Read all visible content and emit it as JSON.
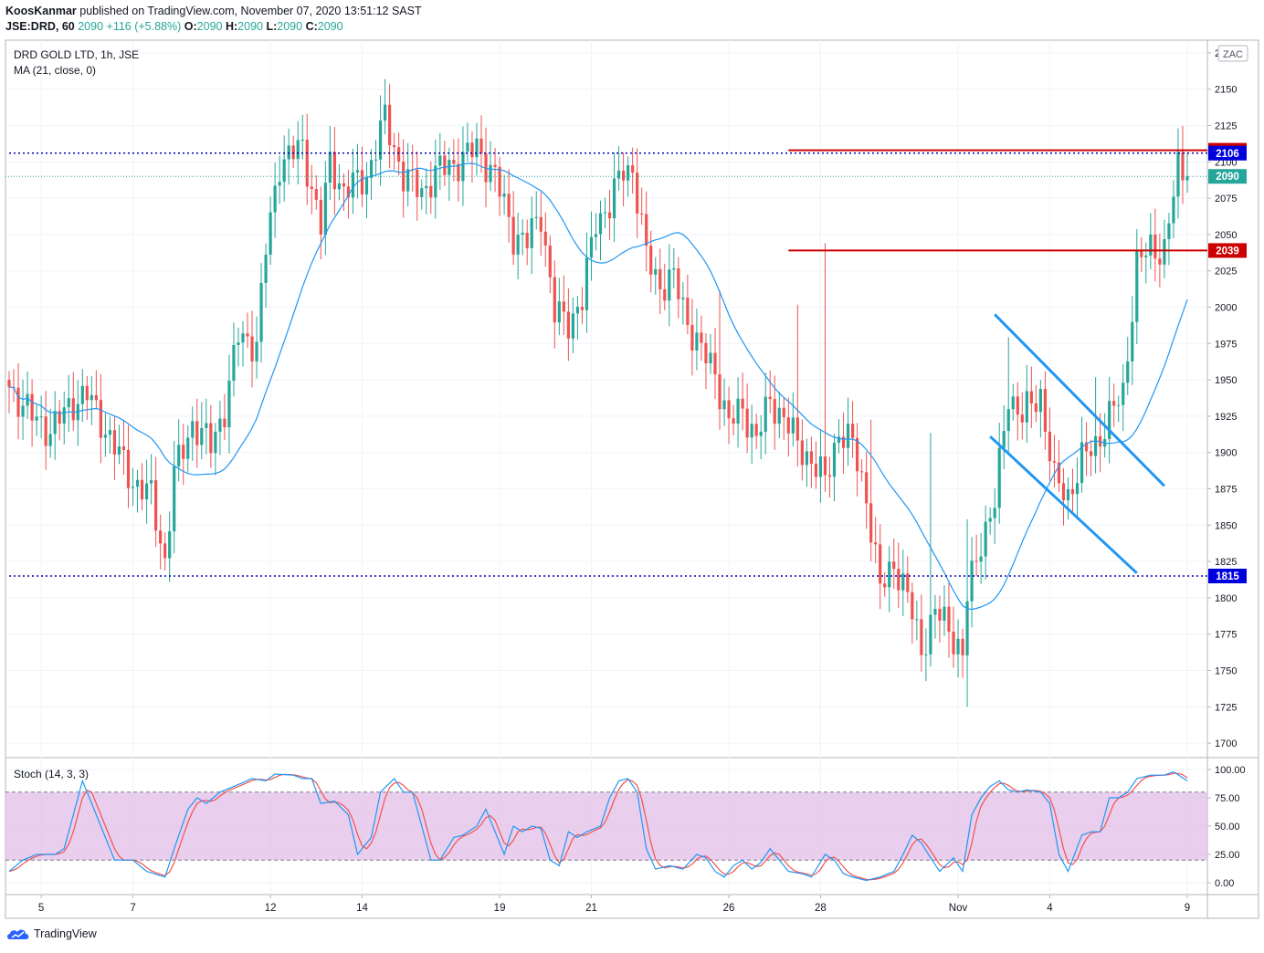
{
  "header": {
    "author": "KoosKanmar",
    "published_text": "published on TradingView.com, November 07, 2020 13:51:12 SAST",
    "symbol": "JSE:DRD, 60",
    "last": "2090",
    "change": "+116 (+5.88%)",
    "o_label": "O:",
    "o_val": "2090",
    "h_label": "H:",
    "h_val": "2090",
    "l_label": "L:",
    "l_val": "2090",
    "c_label": "C:",
    "c_val": "2090"
  },
  "legend": {
    "title": "DRD GOLD LTD, 1h, JSE",
    "ma": "MA (21, close, 0)",
    "stoch": "Stoch (14, 3, 3)"
  },
  "currency_badge": "ZAC",
  "footer": {
    "brand": "TradingView"
  },
  "colors": {
    "up": "#26a69a",
    "down": "#ef5350",
    "ma": "#2196f3",
    "support": "#0000bb",
    "resistance": "#cc0000",
    "k_line": "#2196f3",
    "d_line": "#ef5350",
    "band_fill": "#e1bee7",
    "channel": "#2196f3"
  },
  "chart_data": {
    "type": "candlestick",
    "y_axis": {
      "min": 1690,
      "max": 2185,
      "ticks": [
        1700,
        1725,
        1750,
        1775,
        1800,
        1825,
        1850,
        1875,
        1900,
        1925,
        1950,
        1975,
        2000,
        2025,
        2050,
        2075,
        2100,
        2125,
        2150,
        2175
      ]
    },
    "x_axis": {
      "tick_labels": [
        "5",
        "7",
        "12",
        "14",
        "19",
        "21",
        "26",
        "28",
        "Nov",
        "4",
        "9"
      ],
      "tick_index": [
        7,
        27,
        57,
        77,
        107,
        127,
        157,
        177,
        207,
        227,
        257
      ]
    },
    "price_labels": [
      {
        "text": "2108",
        "price": 2108,
        "color": "#cc0000"
      },
      {
        "text": "2106",
        "price": 2106,
        "color": "#0000dd"
      },
      {
        "text": "2090",
        "price": 2090,
        "color": "#26a69a"
      },
      {
        "text": "2039",
        "price": 2039,
        "color": "#cc0000"
      },
      {
        "text": "1815",
        "price": 1815,
        "color": "#0000dd"
      }
    ],
    "horizontal_lines": [
      {
        "price": 2106,
        "style": "dotted",
        "color": "#0000bb",
        "from_index": 0
      },
      {
        "price": 1815,
        "style": "dotted",
        "color": "#0000bb",
        "from_index": 0
      },
      {
        "price": 2108,
        "style": "solid",
        "color": "#cc0000",
        "from_index": 170
      },
      {
        "price": 2039,
        "style": "solid",
        "color": "#cc0000",
        "from_index": 170
      }
    ],
    "channel_lines": [
      {
        "x1": 215,
        "y1": 1995,
        "x2": 252,
        "y2": 1877
      },
      {
        "x1": 214,
        "y1": 1911,
        "x2": 246,
        "y2": 1817
      }
    ],
    "close_anchors": [
      [
        0,
        1945
      ],
      [
        5,
        1925
      ],
      [
        9,
        1915
      ],
      [
        14,
        1935
      ],
      [
        17,
        1940
      ],
      [
        22,
        1910
      ],
      [
        27,
        1880
      ],
      [
        31,
        1870
      ],
      [
        34,
        1825
      ],
      [
        36,
        1885
      ],
      [
        40,
        1920
      ],
      [
        44,
        1905
      ],
      [
        47,
        1930
      ],
      [
        50,
        1980
      ],
      [
        54,
        1975
      ],
      [
        56,
        2040
      ],
      [
        59,
        2100
      ],
      [
        64,
        2110
      ],
      [
        68,
        2055
      ],
      [
        70,
        2100
      ],
      [
        73,
        2080
      ],
      [
        78,
        2090
      ],
      [
        82,
        2130
      ],
      [
        86,
        2090
      ],
      [
        90,
        2080
      ],
      [
        94,
        2095
      ],
      [
        98,
        2100
      ],
      [
        102,
        2110
      ],
      [
        106,
        2090
      ],
      [
        110,
        2050
      ],
      [
        113,
        2045
      ],
      [
        116,
        2065
      ],
      [
        119,
        1995
      ],
      [
        122,
        1990
      ],
      [
        125,
        2005
      ],
      [
        128,
        2060
      ],
      [
        131,
        2070
      ],
      [
        134,
        2095
      ],
      [
        136,
        2095
      ],
      [
        139,
        2035
      ],
      [
        142,
        2015
      ],
      [
        145,
        2020
      ],
      [
        148,
        1990
      ],
      [
        151,
        1970
      ],
      [
        154,
        1955
      ],
      [
        157,
        1920
      ],
      [
        160,
        1930
      ],
      [
        163,
        1910
      ],
      [
        166,
        1935
      ],
      [
        169,
        1925
      ],
      [
        172,
        1905
      ],
      [
        175,
        1895
      ],
      [
        178,
        1880
      ],
      [
        181,
        1915
      ],
      [
        184,
        1905
      ],
      [
        187,
        1870
      ],
      [
        190,
        1805
      ],
      [
        193,
        1825
      ],
      [
        196,
        1800
      ],
      [
        199,
        1765
      ],
      [
        202,
        1790
      ],
      [
        205,
        1780
      ],
      [
        208,
        1760
      ],
      [
        209,
        1800
      ],
      [
        212,
        1840
      ],
      [
        215,
        1865
      ],
      [
        218,
        1940
      ],
      [
        221,
        1925
      ],
      [
        225,
        1940
      ],
      [
        228,
        1880
      ],
      [
        231,
        1870
      ],
      [
        234,
        1895
      ],
      [
        237,
        1905
      ],
      [
        240,
        1925
      ],
      [
        243,
        1940
      ],
      [
        246,
        2030
      ],
      [
        249,
        2040
      ],
      [
        252,
        2040
      ],
      [
        255,
        2095
      ],
      [
        257,
        2090
      ]
    ],
    "ma_period": 21,
    "stoch": {
      "y_ticks": [
        0,
        25,
        50,
        75,
        100
      ],
      "tick_labels": [
        "0.00",
        "25.00",
        "50.00",
        "75.00",
        "100.00"
      ],
      "band": [
        20,
        80
      ],
      "k_anchors": [
        [
          0,
          10
        ],
        [
          3,
          20
        ],
        [
          6,
          25
        ],
        [
          10,
          25
        ],
        [
          12,
          30
        ],
        [
          14,
          60
        ],
        [
          16,
          90
        ],
        [
          18,
          70
        ],
        [
          21,
          40
        ],
        [
          23,
          20
        ],
        [
          27,
          20
        ],
        [
          30,
          10
        ],
        [
          34,
          5
        ],
        [
          36,
          30
        ],
        [
          39,
          65
        ],
        [
          41,
          75
        ],
        [
          43,
          70
        ],
        [
          46,
          80
        ],
        [
          49,
          85
        ],
        [
          53,
          92
        ],
        [
          56,
          90
        ],
        [
          58,
          96
        ],
        [
          62,
          95
        ],
        [
          64,
          92
        ],
        [
          66,
          92
        ],
        [
          68,
          70
        ],
        [
          71,
          72
        ],
        [
          74,
          60
        ],
        [
          76,
          25
        ],
        [
          79,
          40
        ],
        [
          81,
          80
        ],
        [
          84,
          92
        ],
        [
          86,
          80
        ],
        [
          88,
          80
        ],
        [
          90,
          50
        ],
        [
          92,
          20
        ],
        [
          94,
          20
        ],
        [
          97,
          40
        ],
        [
          99,
          42
        ],
        [
          102,
          50
        ],
        [
          104,
          65
        ],
        [
          106,
          45
        ],
        [
          108,
          25
        ],
        [
          110,
          50
        ],
        [
          112,
          45
        ],
        [
          114,
          50
        ],
        [
          116,
          48
        ],
        [
          118,
          20
        ],
        [
          120,
          15
        ],
        [
          122,
          45
        ],
        [
          124,
          40
        ],
        [
          126,
          45
        ],
        [
          129,
          50
        ],
        [
          131,
          75
        ],
        [
          133,
          90
        ],
        [
          135,
          92
        ],
        [
          137,
          80
        ],
        [
          139,
          30
        ],
        [
          141,
          12
        ],
        [
          144,
          15
        ],
        [
          147,
          12
        ],
        [
          150,
          25
        ],
        [
          152,
          22
        ],
        [
          154,
          10
        ],
        [
          156,
          5
        ],
        [
          158,
          15
        ],
        [
          160,
          20
        ],
        [
          162,
          12
        ],
        [
          164,
          18
        ],
        [
          166,
          30
        ],
        [
          168,
          20
        ],
        [
          170,
          10
        ],
        [
          173,
          8
        ],
        [
          175,
          5
        ],
        [
          178,
          25
        ],
        [
          180,
          20
        ],
        [
          182,
          8
        ],
        [
          184,
          5
        ],
        [
          187,
          2
        ],
        [
          190,
          5
        ],
        [
          193,
          10
        ],
        [
          195,
          25
        ],
        [
          197,
          42
        ],
        [
          199,
          35
        ],
        [
          201,
          22
        ],
        [
          203,
          10
        ],
        [
          206,
          22
        ],
        [
          208,
          10
        ],
        [
          210,
          60
        ],
        [
          212,
          75
        ],
        [
          214,
          85
        ],
        [
          216,
          90
        ],
        [
          218,
          82
        ],
        [
          220,
          80
        ],
        [
          222,
          82
        ],
        [
          225,
          80
        ],
        [
          227,
          70
        ],
        [
          229,
          25
        ],
        [
          231,
          10
        ],
        [
          234,
          42
        ],
        [
          236,
          45
        ],
        [
          238,
          45
        ],
        [
          240,
          75
        ],
        [
          242,
          75
        ],
        [
          244,
          80
        ],
        [
          246,
          92
        ],
        [
          249,
          95
        ],
        [
          252,
          95
        ],
        [
          254,
          98
        ],
        [
          257,
          90
        ]
      ]
    }
  }
}
